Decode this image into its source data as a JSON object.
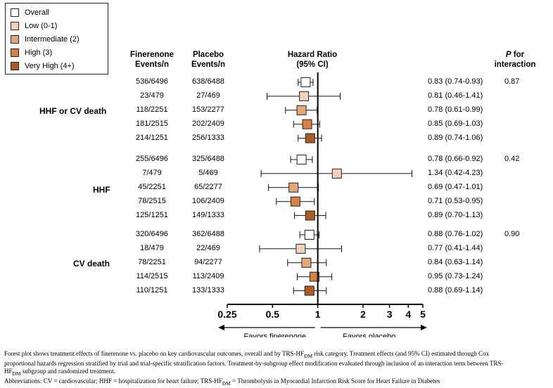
{
  "legend": [
    {
      "label": "Overall",
      "color": "#ffffff"
    },
    {
      "label": "Low (0-1)",
      "color": "#f3d0b9"
    },
    {
      "label": "Intermediate (2)",
      "color": "#e8a779"
    },
    {
      "label": "High (3)",
      "color": "#d97f3f"
    },
    {
      "label": "Very High (4+)",
      "color": "#b05a25"
    }
  ],
  "headers": {
    "finerenone_1": "Finerenone",
    "finerenone_2": "Events/n",
    "placebo_1": "Placebo",
    "placebo_2": "Events/n",
    "hr_1": "Hazard Ratio",
    "hr_2": "(95% CI)",
    "p_1": "P",
    "p_1b": " for",
    "p_2": "interaction"
  },
  "chart_data": {
    "type": "forest",
    "x_scale": "log",
    "ticks": [
      "0.25",
      "0.5",
      "1",
      "2",
      "3",
      "4",
      "5"
    ],
    "tick_values": [
      0.25,
      0.5,
      1,
      2,
      3,
      4,
      5
    ],
    "xlim": [
      0.25,
      5
    ],
    "reference": 1,
    "arrow_left_label": "Favors finerenone",
    "arrow_right_label": "Favors placebo",
    "groups": [
      {
        "label": "HHF or CV death",
        "p_interaction": "0.87",
        "rows": [
          {
            "category": "Overall",
            "fin": "536/6496",
            "pla": "638/6488",
            "hr": 0.83,
            "lo": 0.74,
            "hi": 0.93,
            "ci_text": "0.83 (0.74-0.93)"
          },
          {
            "category": "Low (0-1)",
            "fin": "23/479",
            "pla": "27/469",
            "hr": 0.81,
            "lo": 0.46,
            "hi": 1.41,
            "ci_text": "0.81 (0.46-1.41)"
          },
          {
            "category": "Intermediate (2)",
            "fin": "118/2251",
            "pla": "153/2277",
            "hr": 0.78,
            "lo": 0.61,
            "hi": 0.99,
            "ci_text": "0.78 (0.61-0.99)"
          },
          {
            "category": "High (3)",
            "fin": "181/2515",
            "pla": "202/2409",
            "hr": 0.85,
            "lo": 0.69,
            "hi": 1.03,
            "ci_text": "0.85 (0.69-1.03)"
          },
          {
            "category": "Very High (4+)",
            "fin": "214/1251",
            "pla": "256/1333",
            "hr": 0.89,
            "lo": 0.74,
            "hi": 1.06,
            "ci_text": "0.89 (0.74-1.06)"
          }
        ]
      },
      {
        "label": "HHF",
        "p_interaction": "0.42",
        "rows": [
          {
            "category": "Overall",
            "fin": "255/6496",
            "pla": "325/6488",
            "hr": 0.78,
            "lo": 0.66,
            "hi": 0.92,
            "ci_text": "0.78 (0.66-0.92)"
          },
          {
            "category": "Low (0-1)",
            "fin": "7/479",
            "pla": "5/469",
            "hr": 1.34,
            "lo": 0.42,
            "hi": 4.23,
            "ci_text": "1.34 (0.42-4.23)"
          },
          {
            "category": "Intermediate (2)",
            "fin": "45/2251",
            "pla": "65/2277",
            "hr": 0.69,
            "lo": 0.47,
            "hi": 1.01,
            "ci_text": "0.69 (0.47-1.01)"
          },
          {
            "category": "High (3)",
            "fin": "78/2515",
            "pla": "106/2409",
            "hr": 0.71,
            "lo": 0.53,
            "hi": 0.95,
            "ci_text": "0.71 (0.53-0.95)"
          },
          {
            "category": "Very High (4+)",
            "fin": "125/1251",
            "pla": "149/1333",
            "hr": 0.89,
            "lo": 0.7,
            "hi": 1.13,
            "ci_text": "0.89 (0.70-1.13)"
          }
        ]
      },
      {
        "label": "CV death",
        "p_interaction": "0.90",
        "rows": [
          {
            "category": "Overall",
            "fin": "320/6496",
            "pla": "362/6488",
            "hr": 0.88,
            "lo": 0.76,
            "hi": 1.02,
            "ci_text": "0.88 (0.76-1.02)"
          },
          {
            "category": "Low (0-1)",
            "fin": "18/479",
            "pla": "22/469",
            "hr": 0.77,
            "lo": 0.41,
            "hi": 1.44,
            "ci_text": "0.77 (0.41-1.44)"
          },
          {
            "category": "Intermediate (2)",
            "fin": "78/2251",
            "pla": "94/2277",
            "hr": 0.84,
            "lo": 0.63,
            "hi": 1.14,
            "ci_text": "0.84 (0.63-1.14)"
          },
          {
            "category": "High (3)",
            "fin": "114/2515",
            "pla": "113/2409",
            "hr": 0.95,
            "lo": 0.73,
            "hi": 1.24,
            "ci_text": "0.95 (0.73-1.24)"
          },
          {
            "category": "Very High (4+)",
            "fin": "110/1251",
            "pla": "133/1333",
            "hr": 0.88,
            "lo": 0.69,
            "hi": 1.14,
            "ci_text": "0.88 (0.69-1.14)"
          }
        ]
      }
    ]
  },
  "footnote": {
    "line1": "Forest plot shows treatment effects of finerenone vs. placebo on key cardiovascular outcomes, overall and by TRS-HF",
    "line1_sub": "DM",
    "line1_end": " risk category. Treatment effects (and 95% CI) estimated through Cox",
    "line2": "proportional hazards regression stratified by trial and trial-specific stratification factors. Treatment-by-subgroup effect modification evaluated through inclusion of an interaction term between TRS-",
    "line3": "HF",
    "line3_sub": "DM",
    "line3_end": " subgroup and randomized treatment.",
    "line4": "Abbreviations: CV = cardiovascular; HHF = hospitalization for heart failure; TRS-HF",
    "line4_sub": "DM",
    "line4_end": " =  Thrombolysis in Myocardial Infarction Risk Score for Heart Failure in Diabetes"
  }
}
